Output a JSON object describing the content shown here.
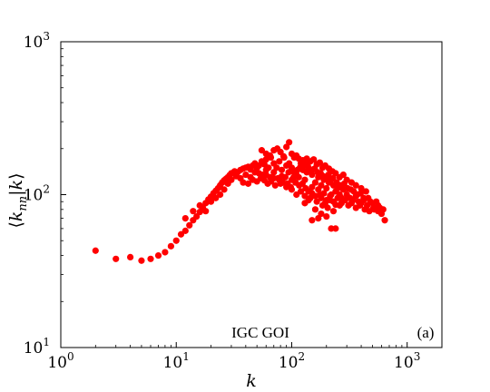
{
  "chart_data": {
    "type": "scatter",
    "title": "",
    "xlabel": "k",
    "ylabel_parts": {
      "open": "⟨",
      "k": "k",
      "sub": "nn",
      "bar": "|",
      "k2": "k",
      "close": "⟩"
    },
    "xscale": "log",
    "yscale": "log",
    "xlim": [
      1,
      2000
    ],
    "ylim": [
      10,
      1000
    ],
    "x_ticks": [
      {
        "base": "10",
        "exp": "0",
        "value": 1
      },
      {
        "base": "10",
        "exp": "1",
        "value": 10
      },
      {
        "base": "10",
        "exp": "2",
        "value": 100
      },
      {
        "base": "10",
        "exp": "3",
        "value": 1000
      }
    ],
    "y_ticks": [
      {
        "base": "10",
        "exp": "1",
        "value": 10
      },
      {
        "base": "10",
        "exp": "2",
        "value": 100
      },
      {
        "base": "10",
        "exp": "3",
        "value": 1000
      }
    ],
    "annotations": {
      "dataset": "IGC GOI",
      "panel": "(a)"
    },
    "grid": false,
    "marker_color": "#ff0000",
    "series": [
      {
        "points": [
          [
            2,
            43
          ],
          [
            3,
            38
          ],
          [
            4,
            39
          ],
          [
            5,
            37
          ],
          [
            6,
            38
          ],
          [
            7,
            40
          ],
          [
            8,
            42
          ],
          [
            9,
            46
          ],
          [
            10,
            50
          ],
          [
            11,
            55
          ],
          [
            12,
            58
          ],
          [
            13,
            63
          ],
          [
            14,
            68
          ],
          [
            15,
            72
          ],
          [
            16,
            77
          ],
          [
            17,
            82
          ],
          [
            18,
            88
          ],
          [
            19,
            93
          ],
          [
            20,
            97
          ],
          [
            21,
            102
          ],
          [
            22,
            106
          ],
          [
            23,
            110
          ],
          [
            24,
            115
          ],
          [
            25,
            120
          ],
          [
            26,
            124
          ],
          [
            27,
            127
          ],
          [
            28,
            130
          ],
          [
            29,
            134
          ],
          [
            30,
            138
          ],
          [
            32,
            142
          ],
          [
            34,
            140
          ],
          [
            36,
            145
          ],
          [
            38,
            148
          ],
          [
            40,
            150
          ],
          [
            42,
            152
          ],
          [
            44,
            146
          ],
          [
            46,
            155
          ],
          [
            48,
            160
          ],
          [
            50,
            150
          ],
          [
            52,
            155
          ],
          [
            55,
            165
          ],
          [
            58,
            158
          ],
          [
            60,
            170
          ],
          [
            63,
            150
          ],
          [
            66,
            175
          ],
          [
            70,
            160
          ],
          [
            74,
            150
          ],
          [
            78,
            165
          ],
          [
            82,
            145
          ],
          [
            86,
            175
          ],
          [
            90,
            155
          ],
          [
            95,
            160
          ],
          [
            100,
            150
          ],
          [
            105,
            140
          ],
          [
            110,
            135
          ],
          [
            115,
            130
          ],
          [
            120,
            160
          ],
          [
            125,
            145
          ],
          [
            130,
            125
          ],
          [
            135,
            140
          ],
          [
            140,
            150
          ],
          [
            150,
            135
          ],
          [
            160,
            120
          ],
          [
            170,
            130
          ],
          [
            180,
            115
          ],
          [
            190,
            125
          ],
          [
            200,
            110
          ],
          [
            210,
            120
          ],
          [
            220,
            100
          ],
          [
            230,
            115
          ],
          [
            240,
            105
          ],
          [
            250,
            110
          ],
          [
            260,
            100
          ],
          [
            270,
            95
          ],
          [
            280,
            108
          ],
          [
            300,
            100
          ],
          [
            320,
            95
          ],
          [
            340,
            92
          ],
          [
            360,
            98
          ],
          [
            380,
            90
          ],
          [
            400,
            88
          ],
          [
            420,
            95
          ],
          [
            450,
            85
          ],
          [
            480,
            90
          ],
          [
            520,
            80
          ],
          [
            560,
            85
          ],
          [
            600,
            75
          ],
          [
            640,
            68
          ],
          [
            12,
            70
          ],
          [
            14,
            78
          ],
          [
            16,
            85
          ],
          [
            18,
            78
          ],
          [
            20,
            90
          ],
          [
            22,
            95
          ],
          [
            24,
            100
          ],
          [
            26,
            108
          ],
          [
            28,
            118
          ],
          [
            30,
            125
          ],
          [
            33,
            132
          ],
          [
            36,
            128
          ],
          [
            40,
            135
          ],
          [
            44,
            130
          ],
          [
            48,
            140
          ],
          [
            52,
            138
          ],
          [
            56,
            135
          ],
          [
            60,
            145
          ],
          [
            65,
            130
          ],
          [
            70,
            140
          ],
          [
            76,
            128
          ],
          [
            82,
            132
          ],
          [
            88,
            130
          ],
          [
            94,
            140
          ],
          [
            100,
            125
          ],
          [
            108,
            120
          ],
          [
            116,
            115
          ],
          [
            124,
            118
          ],
          [
            132,
            110
          ],
          [
            140,
            105
          ],
          [
            150,
            112
          ],
          [
            160,
            98
          ],
          [
            170,
            108
          ],
          [
            180,
            95
          ],
          [
            190,
            102
          ],
          [
            200,
            92
          ],
          [
            215,
            98
          ],
          [
            230,
            90
          ],
          [
            250,
            95
          ],
          [
            270,
            88
          ],
          [
            290,
            92
          ],
          [
            310,
            85
          ],
          [
            330,
            88
          ],
          [
            360,
            82
          ],
          [
            390,
            85
          ],
          [
            430,
            80
          ],
          [
            470,
            78
          ],
          [
            510,
            82
          ],
          [
            560,
            78
          ],
          [
            55,
            195
          ],
          [
            60,
            185
          ],
          [
            65,
            180
          ],
          [
            70,
            195
          ],
          [
            75,
            200
          ],
          [
            80,
            190
          ],
          [
            85,
            178
          ],
          [
            90,
            205
          ],
          [
            95,
            220
          ],
          [
            100,
            185
          ],
          [
            105,
            175
          ],
          [
            110,
            180
          ],
          [
            115,
            172
          ],
          [
            125,
            168
          ],
          [
            135,
            172
          ],
          [
            145,
            165
          ],
          [
            155,
            170
          ],
          [
            165,
            158
          ],
          [
            175,
            162
          ],
          [
            185,
            150
          ],
          [
            195,
            155
          ],
          [
            210,
            148
          ],
          [
            225,
            142
          ],
          [
            240,
            138
          ],
          [
            260,
            130
          ],
          [
            280,
            135
          ],
          [
            300,
            125
          ],
          [
            330,
            120
          ],
          [
            360,
            115
          ],
          [
            400,
            110
          ],
          [
            440,
            105
          ],
          [
            150,
            68
          ],
          [
            170,
            70
          ],
          [
            160,
            80
          ],
          [
            180,
            75
          ],
          [
            200,
            72
          ],
          [
            220,
            60
          ],
          [
            240,
            60
          ],
          [
            130,
            88
          ],
          [
            145,
            95
          ],
          [
            165,
            90
          ],
          [
            185,
            85
          ],
          [
            205,
            82
          ],
          [
            230,
            78
          ],
          [
            260,
            85
          ],
          [
            60,
            135
          ],
          [
            70,
            128
          ],
          [
            80,
            118
          ],
          [
            90,
            112
          ],
          [
            100,
            108
          ],
          [
            110,
            100
          ],
          [
            120,
            105
          ],
          [
            130,
            98
          ],
          [
            140,
            92
          ],
          [
            150,
            102
          ],
          [
            175,
            100
          ],
          [
            195,
            88
          ],
          [
            215,
            92
          ],
          [
            240,
            86
          ],
          [
            38,
            120
          ],
          [
            42,
            118
          ],
          [
            46,
            125
          ],
          [
            50,
            122
          ],
          [
            54,
            128
          ],
          [
            58,
            124
          ],
          [
            62,
            118
          ],
          [
            66,
            122
          ],
          [
            72,
            115
          ],
          [
            78,
            125
          ],
          [
            84,
            120
          ],
          [
            92,
            118
          ],
          [
            98,
            112
          ],
          [
            104,
            130
          ],
          [
            112,
            145
          ],
          [
            118,
            150
          ],
          [
            126,
            155
          ],
          [
            138,
            160
          ],
          [
            148,
            142
          ],
          [
            158,
            148
          ],
          [
            168,
            140
          ],
          [
            178,
            138
          ],
          [
            188,
            132
          ],
          [
            198,
            128
          ],
          [
            208,
            135
          ],
          [
            218,
            125
          ],
          [
            228,
            128
          ],
          [
            245,
            120
          ],
          [
            265,
            115
          ],
          [
            285,
            118
          ],
          [
            305,
            110
          ],
          [
            325,
            108
          ],
          [
            345,
            105
          ],
          [
            370,
            100
          ],
          [
            395,
            102
          ],
          [
            420,
            92
          ],
          [
            460,
            95
          ],
          [
            500,
            88
          ],
          [
            540,
            90
          ],
          [
            580,
            82
          ],
          [
            620,
            80
          ]
        ]
      }
    ]
  }
}
